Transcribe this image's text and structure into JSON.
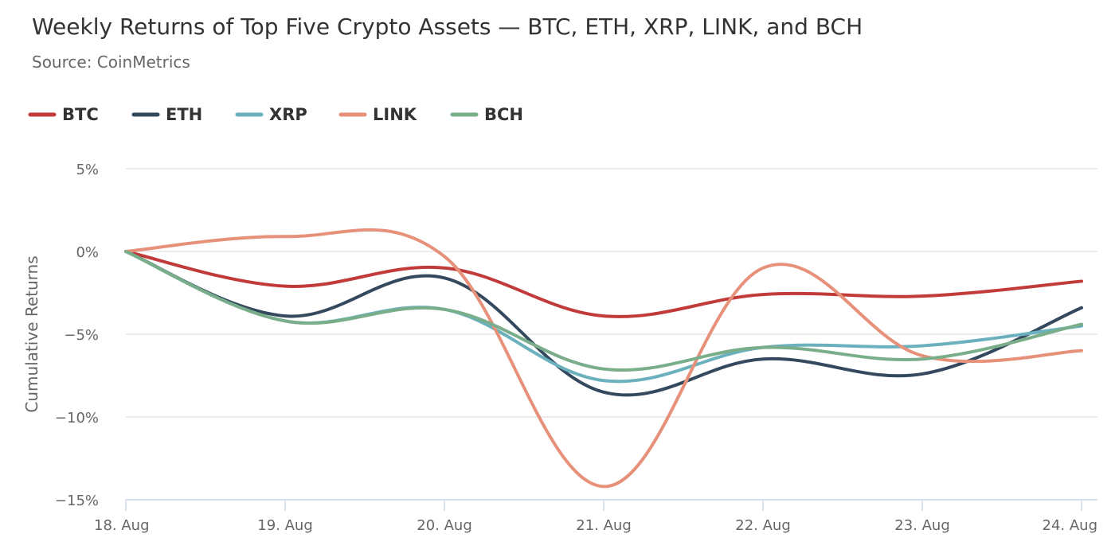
{
  "chart_data": {
    "type": "line",
    "title": "Weekly Returns of Top Five Crypto Assets — BTC, ETH, XRP, LINK, and BCH",
    "subtitle": "Source: CoinMetrics",
    "xlabel": "",
    "ylabel": "Cumulative Returns",
    "categories": [
      "18. Aug",
      "19. Aug",
      "20. Aug",
      "21. Aug",
      "22. Aug",
      "23. Aug",
      "24. Aug"
    ],
    "ylim": [
      -15,
      5
    ],
    "yticks": [
      5,
      0,
      -5,
      -10,
      -15
    ],
    "ytick_labels": [
      "5%",
      "0%",
      "−5%",
      "−10%",
      "−15%"
    ],
    "grid": true,
    "legend_position": "top-left",
    "series": [
      {
        "name": "BTC",
        "color": "#c23b3b",
        "values": [
          0,
          -2.1,
          -1.0,
          -3.9,
          -2.6,
          -2.7,
          -1.8
        ]
      },
      {
        "name": "ETH",
        "color": "#34495e",
        "values": [
          0,
          -3.9,
          -1.6,
          -8.5,
          -6.5,
          -7.4,
          -3.4
        ]
      },
      {
        "name": "XRP",
        "color": "#6ab0bd",
        "values": [
          0,
          -4.2,
          -3.5,
          -7.8,
          -5.8,
          -5.7,
          -4.5
        ]
      },
      {
        "name": "LINK",
        "color": "#e8917a",
        "values": [
          0,
          0.9,
          -0.3,
          -14.2,
          -1.0,
          -6.3,
          -6.0
        ]
      },
      {
        "name": "BCH",
        "color": "#7aad8a",
        "values": [
          0,
          -4.2,
          -3.5,
          -7.1,
          -5.8,
          -6.5,
          -4.4
        ]
      }
    ]
  }
}
